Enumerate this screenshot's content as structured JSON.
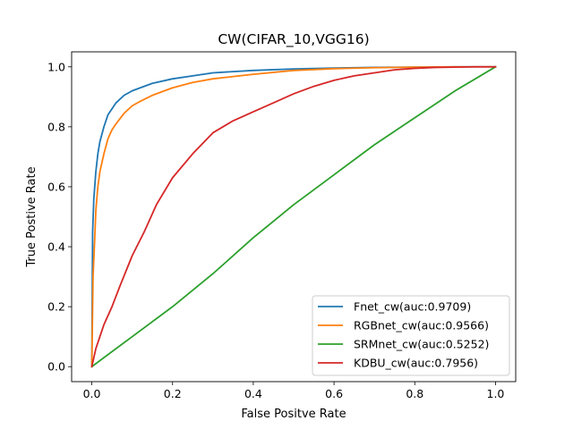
{
  "chart_data": {
    "type": "line",
    "title": "CW(CIFAR_10,VGG16)",
    "xlabel": "False Positve Rate",
    "ylabel": "True Postive Rate",
    "xlim": [
      -0.05,
      1.05
    ],
    "ylim": [
      -0.05,
      1.05
    ],
    "xticks": [
      "0.0",
      "0.2",
      "0.4",
      "0.6",
      "0.8",
      "1.0"
    ],
    "yticks": [
      "0.0",
      "0.2",
      "0.4",
      "0.6",
      "0.8",
      "1.0"
    ],
    "grid": false,
    "legend_position": "lower-right",
    "series": [
      {
        "name": "Fnet_cw(auc:0.9709)",
        "color": "#1f77b4",
        "x": [
          0,
          0.002,
          0.005,
          0.01,
          0.015,
          0.02,
          0.03,
          0.04,
          0.05,
          0.06,
          0.08,
          0.1,
          0.12,
          0.15,
          0.2,
          0.25,
          0.3,
          0.4,
          0.5,
          0.6,
          0.7,
          0.8,
          0.9,
          1.0
        ],
        "y": [
          0,
          0.45,
          0.56,
          0.65,
          0.71,
          0.75,
          0.8,
          0.84,
          0.86,
          0.88,
          0.905,
          0.92,
          0.93,
          0.945,
          0.96,
          0.97,
          0.98,
          0.988,
          0.993,
          0.996,
          0.998,
          0.999,
          1.0,
          1.0
        ]
      },
      {
        "name": "RGBnet_cw(auc:0.9566)",
        "color": "#ff7f0e",
        "x": [
          0,
          0.003,
          0.007,
          0.01,
          0.015,
          0.02,
          0.03,
          0.04,
          0.05,
          0.06,
          0.08,
          0.1,
          0.12,
          0.15,
          0.2,
          0.25,
          0.3,
          0.4,
          0.5,
          0.6,
          0.7,
          0.8,
          0.9,
          1.0
        ],
        "y": [
          0,
          0.3,
          0.42,
          0.52,
          0.6,
          0.65,
          0.71,
          0.76,
          0.79,
          0.81,
          0.845,
          0.87,
          0.885,
          0.905,
          0.93,
          0.948,
          0.96,
          0.975,
          0.988,
          0.994,
          0.997,
          0.999,
          1.0,
          1.0
        ]
      },
      {
        "name": "SRMnet_cw(auc:0.5252)",
        "color": "#2ca02c",
        "x": [
          0,
          0.1,
          0.2,
          0.3,
          0.4,
          0.5,
          0.6,
          0.7,
          0.8,
          0.9,
          1.0
        ],
        "y": [
          0,
          0.1,
          0.2,
          0.31,
          0.43,
          0.54,
          0.64,
          0.74,
          0.83,
          0.92,
          1.0
        ]
      },
      {
        "name": "KDBU_cw(auc:0.7956)",
        "color": "#d62728",
        "x": [
          0,
          0.005,
          0.01,
          0.02,
          0.03,
          0.05,
          0.07,
          0.1,
          0.13,
          0.16,
          0.2,
          0.25,
          0.3,
          0.35,
          0.4,
          0.45,
          0.5,
          0.55,
          0.6,
          0.65,
          0.7,
          0.75,
          0.8,
          0.85,
          0.9,
          0.95,
          1.0
        ],
        "y": [
          0,
          0.03,
          0.06,
          0.1,
          0.14,
          0.2,
          0.27,
          0.37,
          0.45,
          0.54,
          0.63,
          0.71,
          0.78,
          0.82,
          0.85,
          0.88,
          0.91,
          0.935,
          0.955,
          0.97,
          0.98,
          0.99,
          0.995,
          0.998,
          0.999,
          1.0,
          1.0
        ]
      }
    ]
  }
}
